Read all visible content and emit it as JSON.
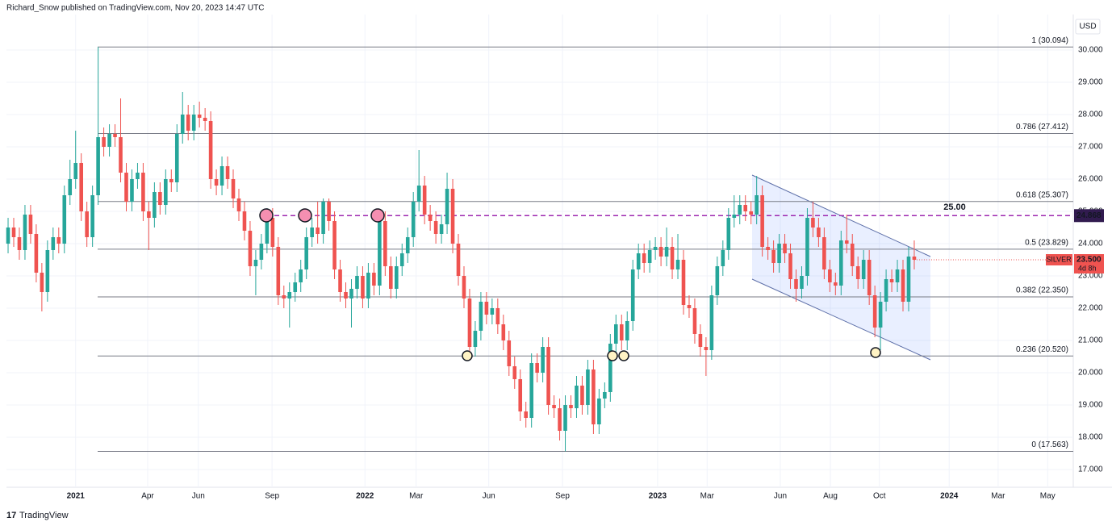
{
  "chart_data": {
    "type": "candlestick",
    "header": "Richard_Snow published on TradingView.com, Nov 20, 2023 14:47 UTC",
    "currency": "USD",
    "brand": "TradingView",
    "up_color": "#26a69a",
    "down_color": "#ef5350",
    "open": [
      24.0,
      24.5,
      24.2,
      23.8,
      24.9,
      24.3,
      23.1,
      22.5,
      23.8,
      24.2,
      24.0,
      25.5,
      26.0,
      26.5,
      25.0,
      24.2,
      25.5,
      27.3,
      27.0,
      27.4,
      27.3,
      26.2,
      25.3,
      26.0,
      26.2,
      25.0,
      24.8,
      25.6,
      25.2,
      26.0,
      25.9,
      27.4,
      28.0,
      27.5,
      28.0,
      27.9,
      27.8,
      26.0,
      25.8,
      26.4,
      26.0,
      25.4,
      25.0,
      24.4,
      23.3,
      23.5,
      24.0,
      24.8,
      23.9,
      22.4,
      22.3,
      22.5,
      22.8,
      23.2,
      24.2,
      24.5,
      24.3,
      25.3,
      24.7,
      23.2,
      22.5,
      22.3,
      22.6,
      23.0,
      22.3,
      23.1,
      22.7,
      24.7,
      23.3,
      22.6,
      23.3,
      23.7,
      24.2,
      25.3,
      25.8,
      24.9,
      24.7,
      24.3,
      24.6,
      25.7,
      24.0,
      23.0,
      22.3,
      20.8,
      21.3,
      22.2,
      21.8,
      22.0,
      21.5,
      21.0,
      20.2,
      19.8,
      18.8,
      18.6,
      20.3,
      20.0,
      20.8,
      19.0,
      18.9,
      18.2,
      19.0,
      18.9,
      19.6,
      19.0,
      20.1,
      18.4,
      19.2,
      19.4,
      20.9,
      21.5,
      21.0,
      21.6,
      23.2,
      23.7,
      23.4,
      23.8,
      23.9,
      23.6,
      23.9,
      23.2,
      23.5,
      22.1,
      22.0,
      21.2,
      20.8,
      20.7,
      22.4,
      23.3,
      23.8,
      24.8,
      24.9,
      25.2,
      25.0,
      24.9,
      25.5,
      23.9,
      23.8,
      23.4,
      24.0,
      23.7,
      22.9,
      22.6,
      23.0,
      24.8,
      24.5,
      24.2,
      23.2,
      22.8,
      22.7,
      24.1,
      24.0,
      23.3,
      22.9,
      23.5,
      22.4,
      21.4,
      22.2,
      22.9,
      22.8,
      23.2,
      22.2,
      23.6
    ],
    "high": [
      24.8,
      24.8,
      24.5,
      25.2,
      25.2,
      24.6,
      23.4,
      24.1,
      24.5,
      24.5,
      25.8,
      26.6,
      27.5,
      26.8,
      25.3,
      25.8,
      30.094,
      27.6,
      27.7,
      27.7,
      28.5,
      26.5,
      26.3,
      26.5,
      26.5,
      25.3,
      25.9,
      25.9,
      26.3,
      26.3,
      27.7,
      28.7,
      28.3,
      28.3,
      28.4,
      28.2,
      28.1,
      26.3,
      26.7,
      26.7,
      26.3,
      25.7,
      25.3,
      24.7,
      23.8,
      24.3,
      25.1,
      25.1,
      24.2,
      22.7,
      22.8,
      23.1,
      23.5,
      24.5,
      24.8,
      25.3,
      25.4,
      25.4,
      25.0,
      23.5,
      22.8,
      22.9,
      23.3,
      23.3,
      23.4,
      23.4,
      25.0,
      25.0,
      23.6,
      23.6,
      24.0,
      24.5,
      25.6,
      26.9,
      26.1,
      25.2,
      25.0,
      24.9,
      26.2,
      26.0,
      24.3,
      23.3,
      22.6,
      21.6,
      22.5,
      22.5,
      22.3,
      22.3,
      21.8,
      21.3,
      20.5,
      20.1,
      19.1,
      20.6,
      20.6,
      21.1,
      21.1,
      19.3,
      19.2,
      19.3,
      19.3,
      19.9,
      19.9,
      20.4,
      20.4,
      19.5,
      19.7,
      21.2,
      21.8,
      21.8,
      21.9,
      23.5,
      24.0,
      24.0,
      24.1,
      24.2,
      24.2,
      24.5,
      24.2,
      24.3,
      23.8,
      22.4,
      22.3,
      21.5,
      21.1,
      22.7,
      23.6,
      24.1,
      25.1,
      25.5,
      25.5,
      25.5,
      25.3,
      26.1,
      25.8,
      24.2,
      24.1,
      24.3,
      24.3,
      24.0,
      23.2,
      23.3,
      25.1,
      25.3,
      24.8,
      24.5,
      23.5,
      23.1,
      24.4,
      24.9,
      24.3,
      23.6,
      23.8,
      23.8,
      22.7,
      22.5,
      23.2,
      23.2,
      23.5,
      23.5,
      23.9,
      24.1
    ],
    "low": [
      23.7,
      23.9,
      23.5,
      23.5,
      24.0,
      22.8,
      21.9,
      22.2,
      23.5,
      23.7,
      23.7,
      25.2,
      25.7,
      24.7,
      23.9,
      23.9,
      25.2,
      26.7,
      26.7,
      27.0,
      25.9,
      25.0,
      25.0,
      25.7,
      24.7,
      23.8,
      24.5,
      24.9,
      24.9,
      25.6,
      25.6,
      27.1,
      27.2,
      27.2,
      27.6,
      27.5,
      25.7,
      25.5,
      25.5,
      25.7,
      25.1,
      24.7,
      24.1,
      23.0,
      22.4,
      23.2,
      23.7,
      23.6,
      22.1,
      22.0,
      21.4,
      22.2,
      22.5,
      22.9,
      23.9,
      24.0,
      24.0,
      24.4,
      22.9,
      22.2,
      22.0,
      21.4,
      22.3,
      22.0,
      22.0,
      22.4,
      22.4,
      23.0,
      22.3,
      22.3,
      23.0,
      23.4,
      23.9,
      25.0,
      24.6,
      24.4,
      24.0,
      24.0,
      24.3,
      23.7,
      22.7,
      22.0,
      20.5,
      20.5,
      21.0,
      21.5,
      21.5,
      21.2,
      20.7,
      19.9,
      19.5,
      18.5,
      18.3,
      18.3,
      19.7,
      19.7,
      18.7,
      18.6,
      17.9,
      17.563,
      18.6,
      18.6,
      18.7,
      18.7,
      18.1,
      18.1,
      18.9,
      19.1,
      20.6,
      20.7,
      20.7,
      21.3,
      22.9,
      23.1,
      23.1,
      23.5,
      23.3,
      23.3,
      22.9,
      22.9,
      21.8,
      21.7,
      20.9,
      20.5,
      19.9,
      20.4,
      22.1,
      23.0,
      23.5,
      24.5,
      24.6,
      24.7,
      24.6,
      24.6,
      23.6,
      23.5,
      23.1,
      23.1,
      23.4,
      22.6,
      22.2,
      22.3,
      22.7,
      24.2,
      23.9,
      22.9,
      22.5,
      22.4,
      22.4,
      23.7,
      23.0,
      22.6,
      22.6,
      22.1,
      21.1,
      20.7,
      21.9,
      22.5,
      22.5,
      21.9,
      21.9,
      23.2
    ],
    "close": [
      24.5,
      24.2,
      23.8,
      24.9,
      24.3,
      23.1,
      22.5,
      23.8,
      24.2,
      24.0,
      25.5,
      26.0,
      26.5,
      25.0,
      24.2,
      25.5,
      27.3,
      27.0,
      27.4,
      27.3,
      26.2,
      25.3,
      26.0,
      26.2,
      25.0,
      24.8,
      25.6,
      25.2,
      26.0,
      25.9,
      27.4,
      28.0,
      27.5,
      28.0,
      27.9,
      27.8,
      26.0,
      25.8,
      26.4,
      26.0,
      25.4,
      25.0,
      24.4,
      23.3,
      23.5,
      24.0,
      24.8,
      23.9,
      22.4,
      22.3,
      22.5,
      22.8,
      23.2,
      24.2,
      24.5,
      24.3,
      25.3,
      24.7,
      23.2,
      22.5,
      22.3,
      22.6,
      23.0,
      22.3,
      23.1,
      22.7,
      24.7,
      23.3,
      22.6,
      23.3,
      23.7,
      24.2,
      25.3,
      25.8,
      24.9,
      24.7,
      24.3,
      24.6,
      25.7,
      24.0,
      23.0,
      22.3,
      20.8,
      21.3,
      22.2,
      21.8,
      22.0,
      21.5,
      21.0,
      20.2,
      19.8,
      18.8,
      18.6,
      20.3,
      20.0,
      20.8,
      19.0,
      18.9,
      18.2,
      19.0,
      18.9,
      19.6,
      19.0,
      20.1,
      18.4,
      19.2,
      19.4,
      20.9,
      21.5,
      21.0,
      21.6,
      23.2,
      23.7,
      23.4,
      23.8,
      23.9,
      23.6,
      23.9,
      23.2,
      23.5,
      22.1,
      22.0,
      21.2,
      20.8,
      20.7,
      22.4,
      23.3,
      23.8,
      24.8,
      24.9,
      25.2,
      25.0,
      24.9,
      25.5,
      23.9,
      23.8,
      23.4,
      24.0,
      23.7,
      22.9,
      22.6,
      23.0,
      24.8,
      24.5,
      24.2,
      23.2,
      22.8,
      22.7,
      24.1,
      24.0,
      23.3,
      22.9,
      23.5,
      22.4,
      21.4,
      22.2,
      22.9,
      22.8,
      23.2,
      22.2,
      23.6,
      23.5
    ],
    "xlim": [
      -0.29,
      189.25
    ],
    "xticks": [
      {
        "value": 12.0,
        "label": "2021"
      },
      {
        "value": 24.8,
        "label": "Apr"
      },
      {
        "value": 33.8,
        "label": "Jun"
      },
      {
        "value": 46.9,
        "label": "Sep"
      },
      {
        "value": 63.4,
        "label": "2022"
      },
      {
        "value": 72.5,
        "label": "Mar"
      },
      {
        "value": 85.4,
        "label": "Jun"
      },
      {
        "value": 98.5,
        "label": "Sep"
      },
      {
        "value": 115.4,
        "label": "2023"
      },
      {
        "value": 124.2,
        "label": "Mar"
      },
      {
        "value": 137.2,
        "label": "Jun"
      },
      {
        "value": 146.1,
        "label": "Aug"
      },
      {
        "value": 154.8,
        "label": "Oct"
      },
      {
        "value": 167.2,
        "label": "2024"
      },
      {
        "value": 175.9,
        "label": "Mar"
      },
      {
        "value": 184.7,
        "label": "May"
      }
    ],
    "ylim": [
      16.45,
      31.1
    ],
    "yticks": [
      {
        "value": 17,
        "label": "17.000"
      },
      {
        "value": 18,
        "label": "18.000"
      },
      {
        "value": 19,
        "label": "19.000"
      },
      {
        "value": 20,
        "label": "20.000"
      },
      {
        "value": 21,
        "label": "21.000"
      },
      {
        "value": 22,
        "label": "22.000"
      },
      {
        "value": 23,
        "label": "23.000"
      },
      {
        "value": 24,
        "label": "24.000"
      },
      {
        "value": 25,
        "label": "25.000"
      },
      {
        "value": 26,
        "label": "26.000"
      },
      {
        "value": 27,
        "label": "27.000"
      },
      {
        "value": 28,
        "label": "28.000"
      },
      {
        "value": 29,
        "label": "29.000"
      },
      {
        "value": 30,
        "label": "30.000"
      }
    ],
    "levels": [
      {
        "value": 30.094,
        "label": "1 (30.094)"
      },
      {
        "value": 27.412,
        "label": "0.786 (27.412)"
      },
      {
        "value": 25.307,
        "label": "0.618 (25.307)"
      },
      {
        "value": 23.829,
        "label": "0.5 (23.829)"
      },
      {
        "value": 22.35,
        "label": "0.382 (22.350)"
      },
      {
        "value": 20.52,
        "label": "0.236 (20.520)"
      },
      {
        "value": 17.563,
        "label": "0 (17.563)"
      }
    ],
    "level_color": "#787b86",
    "resistance": {
      "value": 24.868,
      "label": "24.868",
      "note": "25.00",
      "color": "#9c27b0"
    },
    "last": {
      "name": "SILVER",
      "value": 23.5,
      "label": "23.500",
      "countdown": "4d 8h",
      "color": "#ef5350"
    }
  }
}
